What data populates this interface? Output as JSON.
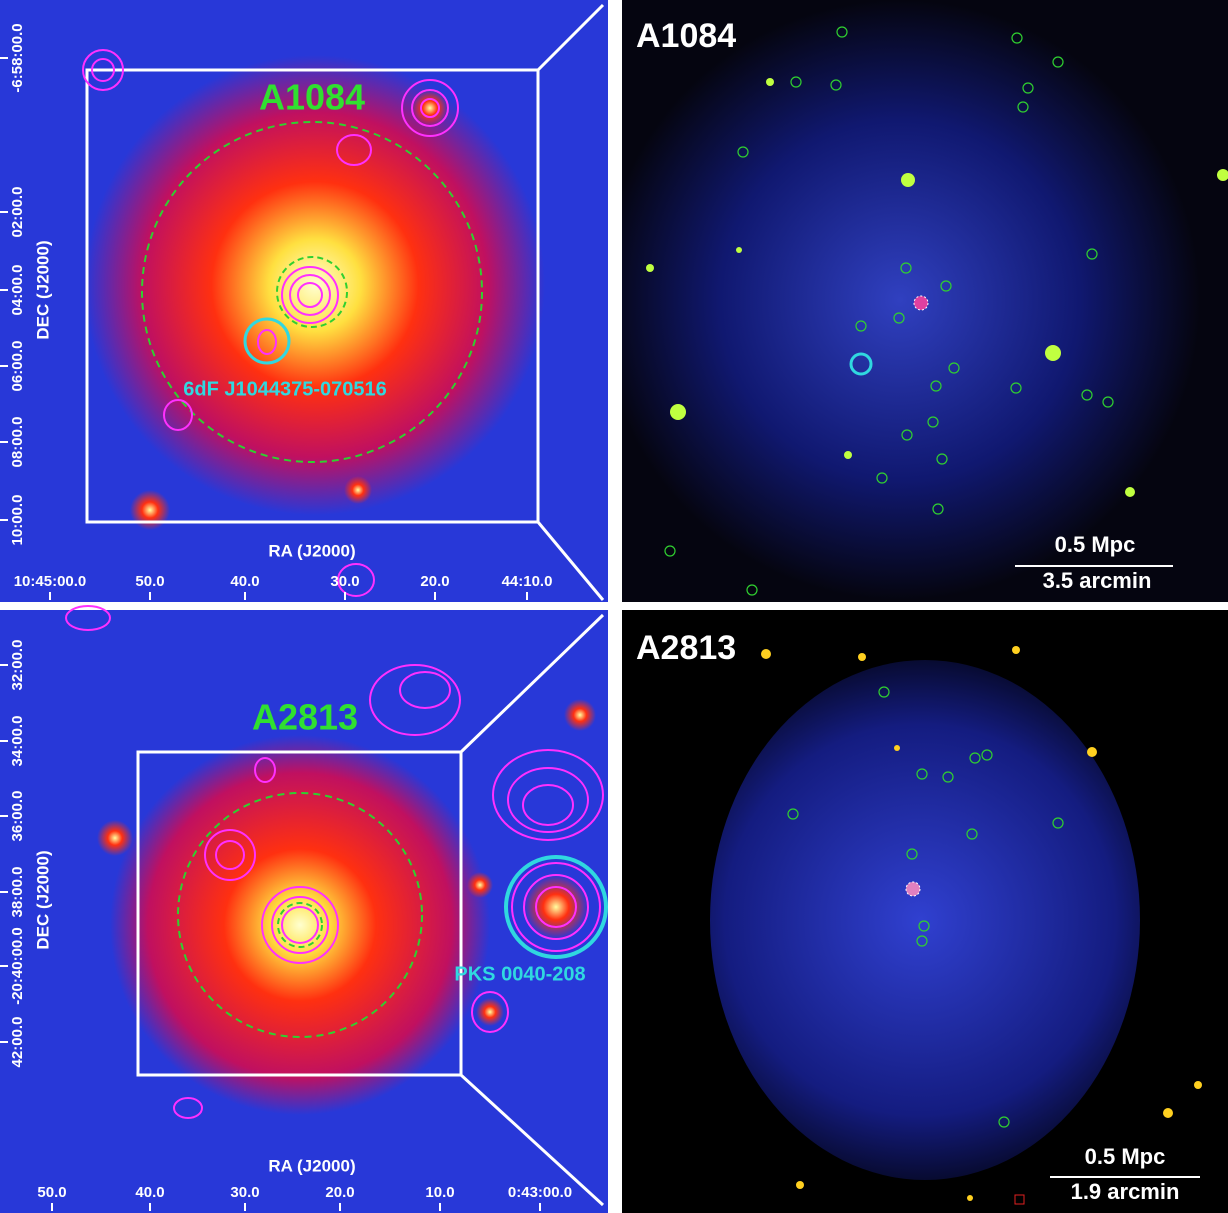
{
  "panels": [
    {
      "ra_label": "RA (J2000)",
      "dec_label": "DEC (J2000)",
      "ra_ticks": [
        "10:45:00.0",
        "50.0",
        "40.0",
        "30.0",
        "20.0",
        "44:10.0"
      ],
      "dec_ticks": [
        "-6:58:00.0",
        "02:00.0",
        "04:00.0",
        "06:00.0",
        "08:00.0",
        "10:00.0"
      ],
      "cluster": "A1084",
      "source": "6dF J1044375-070516"
    },
    {
      "name": "A1084",
      "scale_mpc": "0.5 Mpc",
      "scale_arcmin": "3.5 arcmin"
    },
    {
      "ra_label": "RA (J2000)",
      "dec_label": "DEC (J2000)",
      "ra_ticks": [
        "50.0",
        "40.0",
        "30.0",
        "20.0",
        "10.0",
        "0:43:00.0"
      ],
      "dec_ticks": [
        "32:00.0",
        "34:00.0",
        "36:00.0",
        "38:00.0",
        "-20:40:00.0",
        "42:00.0"
      ],
      "cluster": "A2813",
      "source": "PKS 0040-208"
    },
    {
      "name": "A2813",
      "scale_mpc": "0.5 Mpc",
      "scale_arcmin": "1.9 arcmin"
    }
  ]
}
